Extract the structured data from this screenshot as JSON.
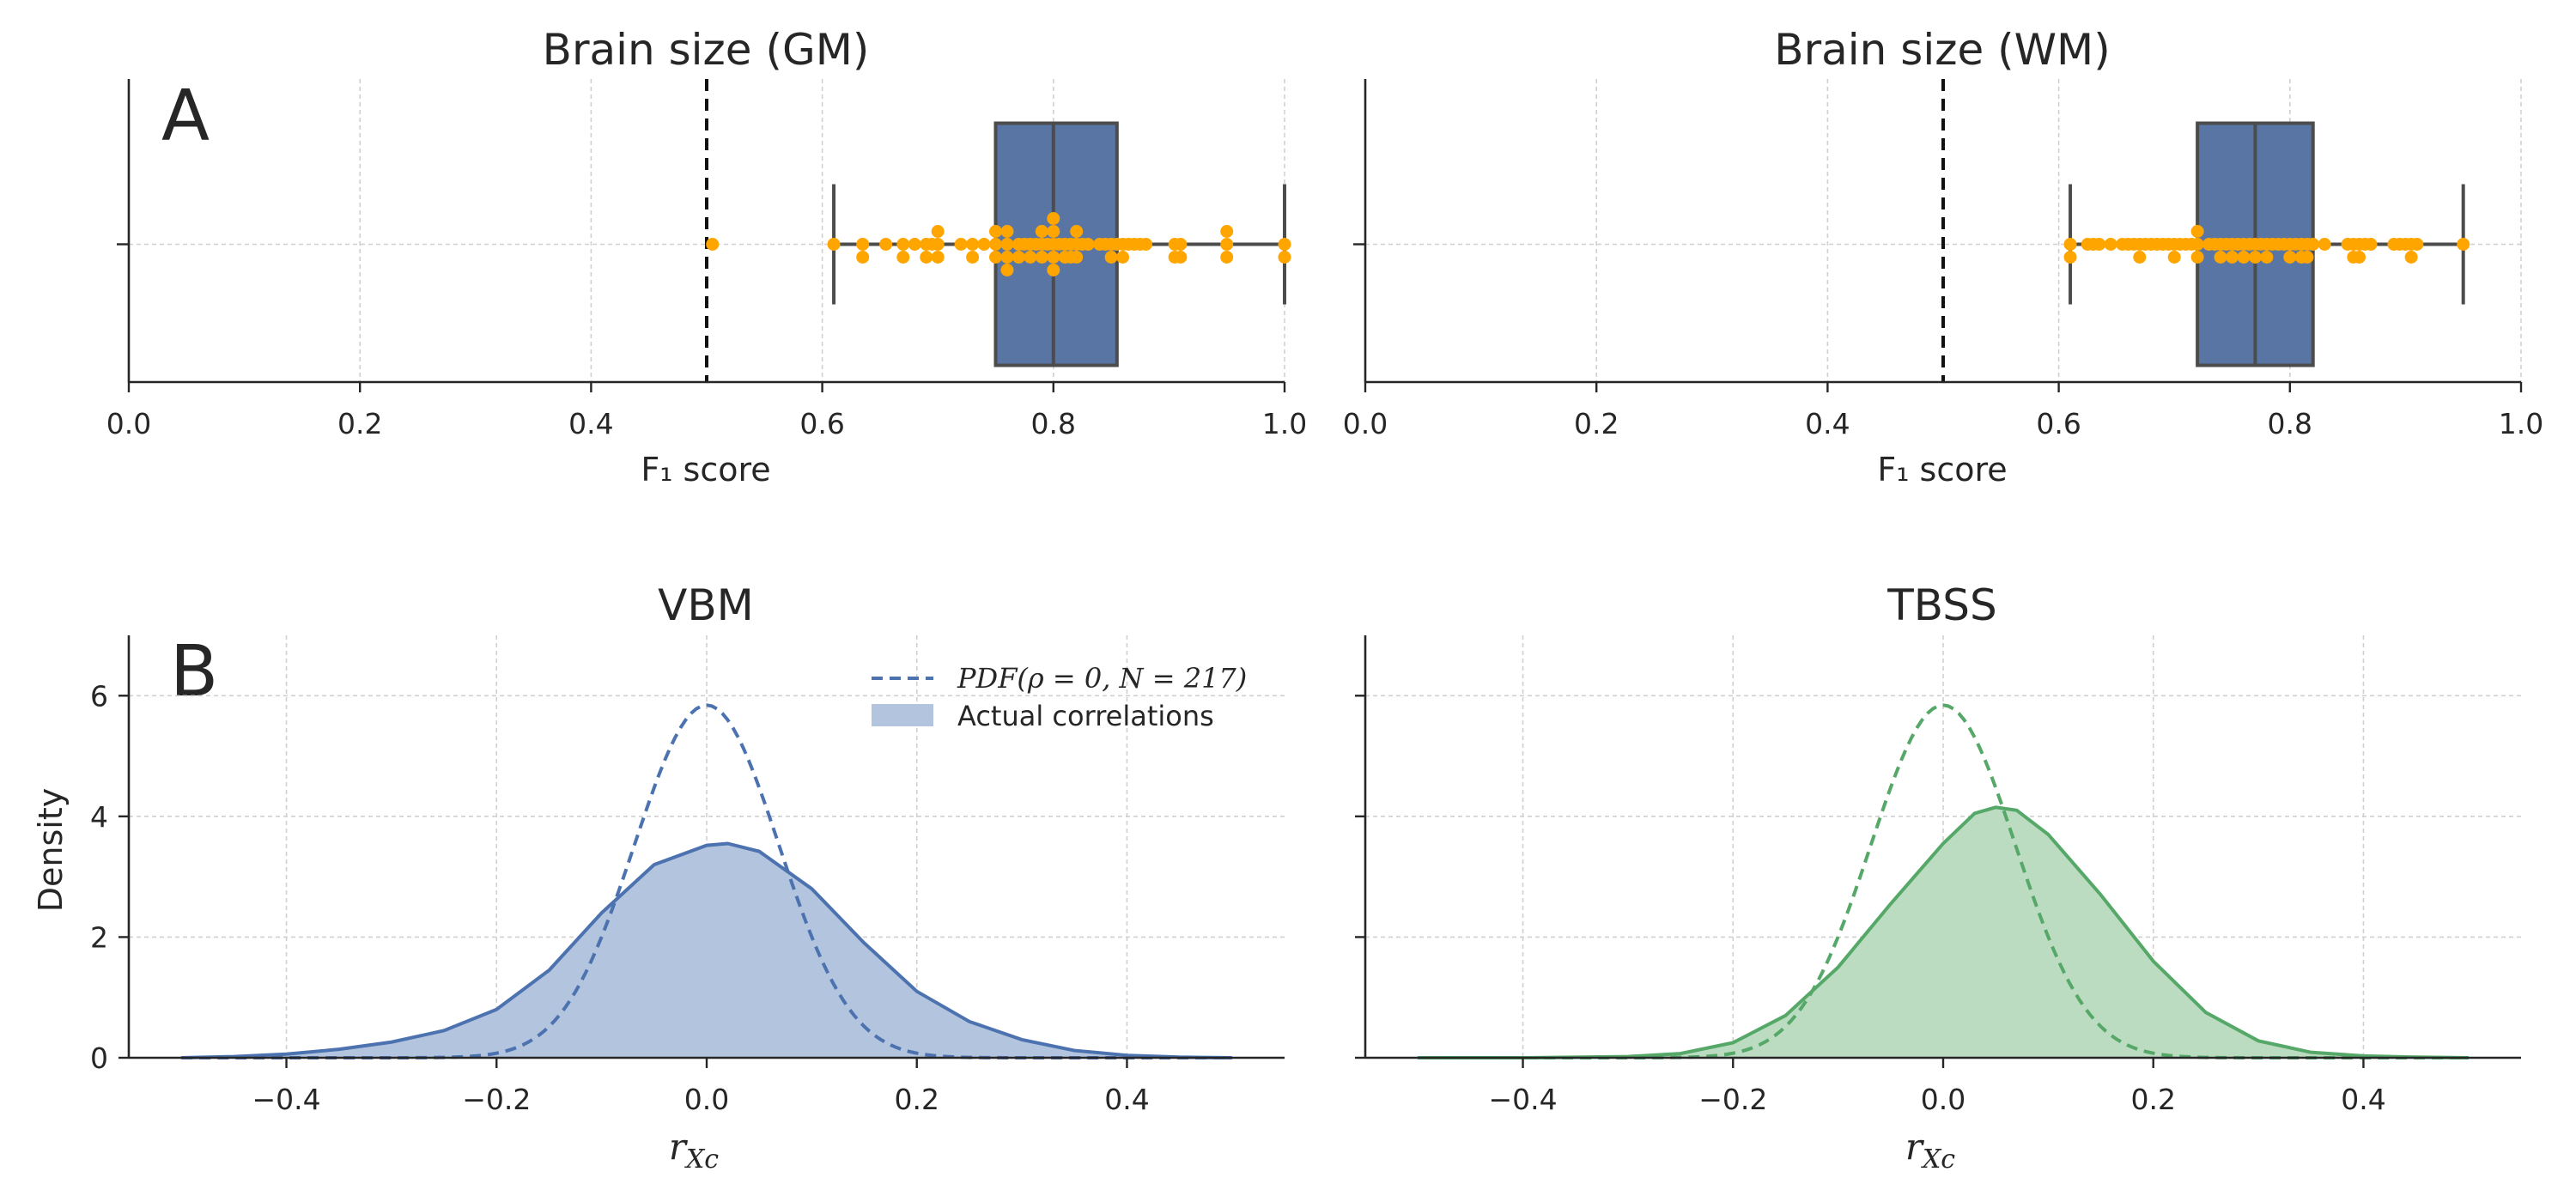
{
  "chart_data": [
    {
      "type": "box",
      "panel_label": "A",
      "title": "Brain size (GM)",
      "xlabel": "F₁ score",
      "xlim": [
        0.0,
        1.0
      ],
      "xticks": [
        "0.0",
        "0.2",
        "0.4",
        "0.6",
        "0.8",
        "1.0"
      ],
      "chance_line": 0.5,
      "box": {
        "whisker_low": 0.61,
        "q1": 0.75,
        "median": 0.8,
        "q3": 0.855,
        "whisker_high": 1.0,
        "outliers": [
          0.505
        ]
      },
      "points": [
        0.505,
        0.61,
        0.635,
        0.635,
        0.655,
        0.67,
        0.67,
        0.68,
        0.69,
        0.69,
        0.695,
        0.7,
        0.7,
        0.7,
        0.72,
        0.73,
        0.73,
        0.74,
        0.75,
        0.75,
        0.75,
        0.76,
        0.76,
        0.76,
        0.76,
        0.77,
        0.77,
        0.775,
        0.78,
        0.78,
        0.785,
        0.79,
        0.79,
        0.79,
        0.795,
        0.8,
        0.8,
        0.8,
        0.8,
        0.8,
        0.805,
        0.81,
        0.81,
        0.815,
        0.815,
        0.82,
        0.82,
        0.82,
        0.825,
        0.83,
        0.84,
        0.845,
        0.85,
        0.85,
        0.855,
        0.86,
        0.86,
        0.865,
        0.87,
        0.875,
        0.88,
        0.905,
        0.905,
        0.91,
        0.91,
        0.95,
        0.95,
        0.95,
        1.0,
        1.0
      ],
      "colors": {
        "box": "#5975a4",
        "points": "#ffa500",
        "line": "#4c4c4c"
      }
    },
    {
      "type": "box",
      "title": "Brain size (WM)",
      "xlabel": "F₁ score",
      "xlim": [
        0.0,
        1.0
      ],
      "xticks": [
        "0.0",
        "0.2",
        "0.4",
        "0.6",
        "0.8",
        "1.0"
      ],
      "chance_line": 0.5,
      "box": {
        "whisker_low": 0.61,
        "q1": 0.72,
        "median": 0.77,
        "q3": 0.82,
        "whisker_high": 0.95,
        "outliers": []
      },
      "points": [
        0.61,
        0.61,
        0.625,
        0.63,
        0.635,
        0.645,
        0.655,
        0.66,
        0.665,
        0.67,
        0.67,
        0.675,
        0.68,
        0.685,
        0.69,
        0.695,
        0.7,
        0.7,
        0.705,
        0.71,
        0.715,
        0.72,
        0.72,
        0.72,
        0.73,
        0.735,
        0.74,
        0.74,
        0.745,
        0.75,
        0.75,
        0.755,
        0.76,
        0.76,
        0.765,
        0.77,
        0.77,
        0.775,
        0.78,
        0.78,
        0.785,
        0.79,
        0.795,
        0.8,
        0.8,
        0.805,
        0.81,
        0.81,
        0.815,
        0.815,
        0.82,
        0.83,
        0.85,
        0.855,
        0.855,
        0.86,
        0.86,
        0.865,
        0.87,
        0.89,
        0.895,
        0.9,
        0.905,
        0.905,
        0.91,
        0.95
      ],
      "colors": {
        "box": "#5975a4",
        "points": "#ffa500",
        "line": "#4c4c4c"
      }
    },
    {
      "type": "area",
      "panel_label": "B",
      "title": "VBM",
      "xlabel": "r_Xc",
      "ylabel": "Density",
      "xlim": [
        -0.55,
        0.55
      ],
      "ylim": [
        0,
        7
      ],
      "xticks": [
        "−0.4",
        "−0.2",
        "0.0",
        "0.2",
        "0.4"
      ],
      "yticks": [
        "0",
        "2",
        "4",
        "6"
      ],
      "legend": {
        "position": "top-right",
        "pdf_label": "PDF(ρ = 0, N = 217)",
        "actual_label": "Actual correlations"
      },
      "pdf": {
        "rho": 0,
        "N": 217,
        "range": [
          -0.5,
          0.5
        ]
      },
      "kde": {
        "x": [
          -0.5,
          -0.45,
          -0.4,
          -0.35,
          -0.3,
          -0.25,
          -0.2,
          -0.15,
          -0.1,
          -0.05,
          0.0,
          0.02,
          0.05,
          0.1,
          0.15,
          0.2,
          0.25,
          0.3,
          0.35,
          0.4,
          0.45,
          0.5
        ],
        "y": [
          0.0,
          0.02,
          0.06,
          0.14,
          0.26,
          0.45,
          0.8,
          1.45,
          2.4,
          3.2,
          3.52,
          3.55,
          3.42,
          2.8,
          1.9,
          1.1,
          0.6,
          0.3,
          0.12,
          0.04,
          0.01,
          0.0
        ]
      },
      "colors": {
        "fill": "#b3c5de",
        "line": "#4c72b0"
      }
    },
    {
      "type": "area",
      "title": "TBSS",
      "xlabel": "r_Xc",
      "xlim": [
        -0.55,
        0.55
      ],
      "ylim": [
        0,
        7
      ],
      "xticks": [
        "−0.4",
        "−0.2",
        "0.0",
        "0.2",
        "0.4"
      ],
      "yticks": [
        "0",
        "2",
        "4",
        "6"
      ],
      "pdf": {
        "rho": 0,
        "N": 217,
        "range": [
          -0.5,
          0.5
        ]
      },
      "kde": {
        "x": [
          -0.5,
          -0.4,
          -0.3,
          -0.25,
          -0.2,
          -0.15,
          -0.1,
          -0.05,
          0.0,
          0.03,
          0.05,
          0.07,
          0.1,
          0.15,
          0.2,
          0.25,
          0.3,
          0.35,
          0.4,
          0.45,
          0.5
        ],
        "y": [
          0.0,
          0.0,
          0.02,
          0.07,
          0.25,
          0.7,
          1.5,
          2.55,
          3.55,
          4.05,
          4.15,
          4.1,
          3.7,
          2.7,
          1.6,
          0.75,
          0.28,
          0.09,
          0.03,
          0.01,
          0.0
        ]
      },
      "colors": {
        "fill": "#bcdcc1",
        "line": "#55a868"
      }
    }
  ]
}
